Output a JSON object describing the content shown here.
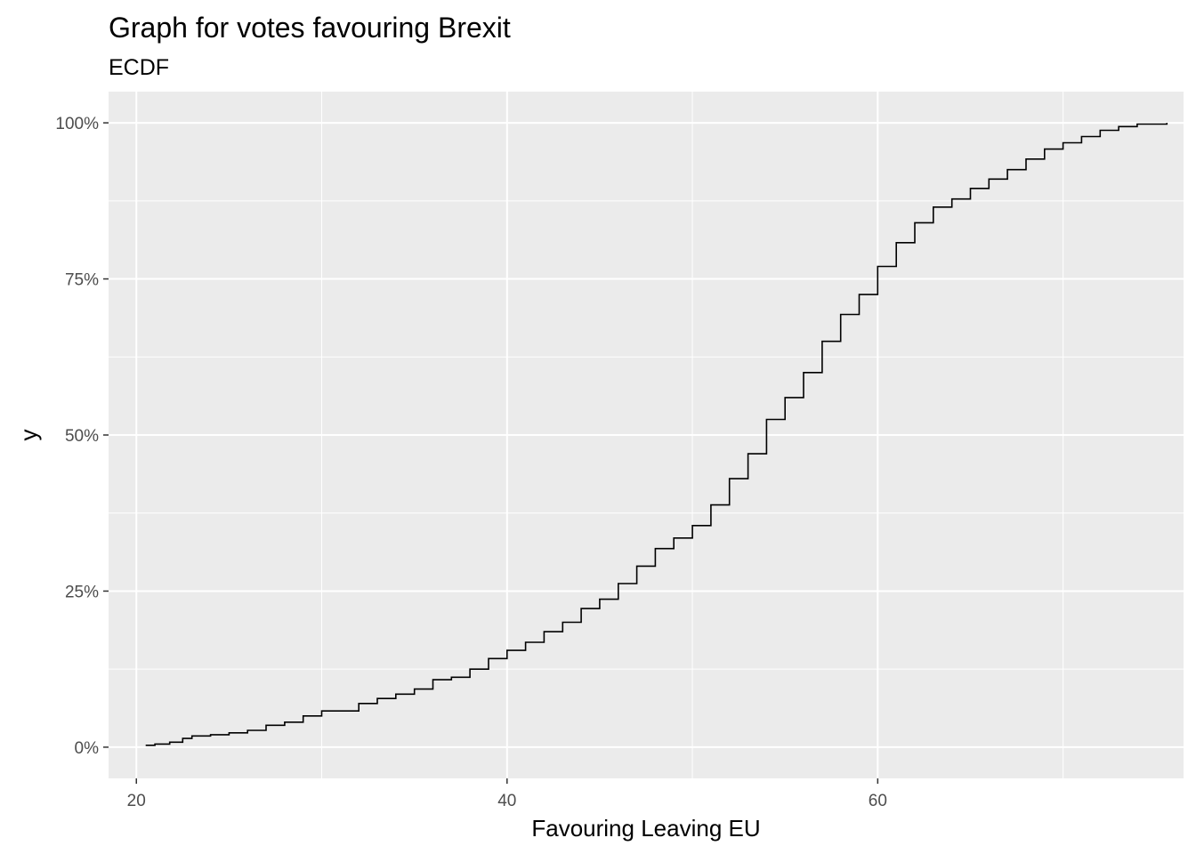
{
  "chart_data": {
    "type": "line",
    "subtype": "ecdf-step",
    "title": "Graph for votes favouring Brexit",
    "subtitle": "ECDF",
    "xlabel": "Favouring Leaving EU",
    "ylabel": "y",
    "xlim": [
      18.5,
      76.5
    ],
    "ylim": [
      -0.05,
      1.05
    ],
    "x_ticks": [
      {
        "value": 20,
        "label": "20"
      },
      {
        "value": 40,
        "label": "40"
      },
      {
        "value": 60,
        "label": "60"
      }
    ],
    "x_minor_breaks": [
      30,
      50,
      70
    ],
    "y_ticks": [
      {
        "value": 0,
        "label": "0%"
      },
      {
        "value": 0.25,
        "label": "25%"
      },
      {
        "value": 0.5,
        "label": "50%"
      },
      {
        "value": 0.75,
        "label": "75%"
      },
      {
        "value": 1,
        "label": "100%"
      }
    ],
    "y_minor_breaks": [
      0.125,
      0.375,
      0.625,
      0.875
    ],
    "grid": true,
    "legend": "none",
    "colors": {
      "panel_background": "#ebebeb",
      "grid_line": "#ffffff",
      "line": "#000000"
    },
    "series": [
      {
        "points": [
          [
            20.5,
            0.003
          ],
          [
            21.0,
            0.005
          ],
          [
            21.8,
            0.008
          ],
          [
            22.5,
            0.014
          ],
          [
            23.0,
            0.018
          ],
          [
            24.0,
            0.02
          ],
          [
            25.0,
            0.023
          ],
          [
            26.0,
            0.027
          ],
          [
            27.0,
            0.035
          ],
          [
            28.0,
            0.04
          ],
          [
            29.0,
            0.05
          ],
          [
            30.0,
            0.058
          ],
          [
            31.0,
            0.058
          ],
          [
            32.0,
            0.07
          ],
          [
            33.0,
            0.078
          ],
          [
            34.0,
            0.085
          ],
          [
            35.0,
            0.093
          ],
          [
            36.0,
            0.108
          ],
          [
            37.0,
            0.112
          ],
          [
            38.0,
            0.125
          ],
          [
            39.0,
            0.142
          ],
          [
            40.0,
            0.155
          ],
          [
            41.0,
            0.168
          ],
          [
            42.0,
            0.185
          ],
          [
            43.0,
            0.2
          ],
          [
            44.0,
            0.222
          ],
          [
            45.0,
            0.237
          ],
          [
            46.0,
            0.262
          ],
          [
            47.0,
            0.29
          ],
          [
            48.0,
            0.318
          ],
          [
            49.0,
            0.335
          ],
          [
            50.0,
            0.355
          ],
          [
            51.0,
            0.388
          ],
          [
            52.0,
            0.43
          ],
          [
            53.0,
            0.47
          ],
          [
            54.0,
            0.525
          ],
          [
            55.0,
            0.56
          ],
          [
            56.0,
            0.6
          ],
          [
            57.0,
            0.65
          ],
          [
            58.0,
            0.693
          ],
          [
            59.0,
            0.725
          ],
          [
            60.0,
            0.77
          ],
          [
            61.0,
            0.808
          ],
          [
            62.0,
            0.84
          ],
          [
            63.0,
            0.865
          ],
          [
            64.0,
            0.878
          ],
          [
            65.0,
            0.895
          ],
          [
            66.0,
            0.91
          ],
          [
            67.0,
            0.925
          ],
          [
            68.0,
            0.942
          ],
          [
            69.0,
            0.958
          ],
          [
            70.0,
            0.968
          ],
          [
            71.0,
            0.978
          ],
          [
            72.0,
            0.988
          ],
          [
            73.0,
            0.994
          ],
          [
            74.0,
            0.998
          ],
          [
            75.6,
            1.0
          ]
        ]
      }
    ]
  }
}
